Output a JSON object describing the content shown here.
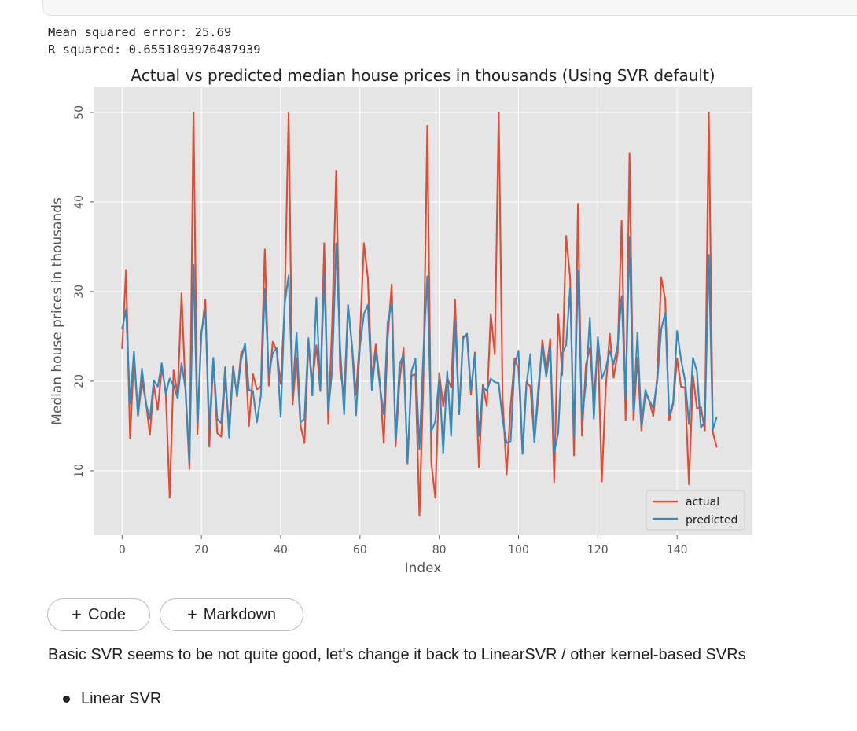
{
  "output": {
    "lines": [
      "Mean squared error: 25.69",
      "R squared: 0.6551893976487939"
    ]
  },
  "chart_data": {
    "type": "line",
    "title": "Actual vs predicted median house prices in thousands (Using SVR default)",
    "xlabel": "Index",
    "ylabel": "Median house prices in thousands",
    "xlim": [
      -7,
      159
    ],
    "ylim": [
      2.8,
      52.8
    ],
    "xticks": [
      0,
      20,
      40,
      60,
      80,
      100,
      120,
      140
    ],
    "yticks": [
      10,
      20,
      30,
      40,
      50
    ],
    "grid": true,
    "legend_position": "bottom-right",
    "series": [
      {
        "name": "actual",
        "color": "#E24A33",
        "values": [
          23.6,
          32.4,
          13.6,
          22.8,
          16.1,
          20.0,
          17.8,
          14.0,
          19.6,
          16.8,
          21.5,
          18.9,
          7.0,
          21.2,
          18.5,
          29.8,
          18.8,
          10.2,
          50.0,
          14.1,
          25.2,
          29.1,
          12.7,
          22.4,
          14.2,
          13.8,
          20.3,
          14.9,
          21.7,
          18.3,
          23.1,
          23.8,
          15.0,
          20.8,
          19.1,
          19.4,
          34.7,
          19.5,
          24.4,
          23.4,
          19.7,
          28.2,
          50.0,
          17.4,
          22.6,
          15.1,
          13.1,
          24.2,
          19.9,
          24.0,
          18.9,
          35.4,
          15.2,
          26.5,
          43.5,
          21.2,
          18.4,
          28.5,
          23.9,
          18.5,
          25.0,
          35.4,
          31.5,
          20.2,
          24.1,
          20.0,
          13.1,
          24.8,
          30.8,
          12.7,
          20.0,
          23.7,
          10.8,
          20.6,
          20.8,
          5.0,
          20.1,
          48.5,
          10.9,
          7.0,
          20.9,
          17.2,
          20.4,
          19.3,
          29.1,
          16.3,
          25.0,
          25.0,
          18.5,
          23.2,
          10.4,
          19.6,
          17.2,
          27.5,
          23.0,
          50.0,
          17.9,
          9.6,
          17.2,
          22.5,
          21.4,
          12.0,
          19.9,
          19.4,
          13.4,
          18.2,
          24.6,
          21.1,
          24.7,
          8.7,
          27.5,
          20.7,
          36.2,
          31.6,
          11.7,
          39.8,
          13.9,
          21.8,
          23.7,
          17.6,
          24.4,
          8.8,
          19.2,
          25.3,
          20.4,
          23.1,
          37.9,
          15.6,
          45.4,
          15.7,
          22.6,
          14.5,
          18.7,
          17.8,
          16.1,
          20.6,
          31.6,
          29.1,
          15.6,
          17.5,
          22.5,
          19.4,
          19.3,
          8.5,
          20.6,
          17.0,
          17.1,
          14.5,
          50.0,
          14.3,
          12.6
        ]
      },
      {
        "name": "predicted",
        "color": "#348ABD",
        "values": [
          25.8,
          28.0,
          17.5,
          23.3,
          16.2,
          21.4,
          17.6,
          15.8,
          20.1,
          19.4,
          22.0,
          18.6,
          20.3,
          19.5,
          18.1,
          22.0,
          19.1,
          11.1,
          33.0,
          15.2,
          25.5,
          27.9,
          14.7,
          22.6,
          15.8,
          15.3,
          21.6,
          13.7,
          21.5,
          18.4,
          22.3,
          24.2,
          19.0,
          18.9,
          15.4,
          18.4,
          30.3,
          20.7,
          23.1,
          23.7,
          16.0,
          28.6,
          31.8,
          18.7,
          25.4,
          15.4,
          15.8,
          24.8,
          18.4,
          29.3,
          19.0,
          31.9,
          16.6,
          21.3,
          35.4,
          23.8,
          16.3,
          28.4,
          24.0,
          16.2,
          23.9,
          27.5,
          28.5,
          19.0,
          23.3,
          19.6,
          16.3,
          26.6,
          28.6,
          13.4,
          21.9,
          22.9,
          10.9,
          21.1,
          22.5,
          12.4,
          23.1,
          31.7,
          14.4,
          15.5,
          20.5,
          12.0,
          21.1,
          13.9,
          26.8,
          16.3,
          24.7,
          25.3,
          19.0,
          23.0,
          13.9,
          19.4,
          18.9,
          20.3,
          19.9,
          19.8,
          15.6,
          13.1,
          13.3,
          21.8,
          23.4,
          11.9,
          19.6,
          23.0,
          13.2,
          19.4,
          23.9,
          20.5,
          23.7,
          12.0,
          14.2,
          23.1,
          24.0,
          30.4,
          13.8,
          32.3,
          15.8,
          19.8,
          27.1,
          15.8,
          24.9,
          20.3,
          21.4,
          23.4,
          21.9,
          24.0,
          29.5,
          18.0,
          36.1,
          16.6,
          25.4,
          15.0,
          19.0,
          17.8,
          17.0,
          20.0,
          25.8,
          27.6,
          16.3,
          17.6,
          25.6,
          22.4,
          20.1,
          15.2,
          22.6,
          21.1,
          14.8,
          15.5,
          34.1,
          14.6,
          16.0
        ]
      }
    ]
  },
  "toolbar": {
    "add_code_label": "Code",
    "add_markdown_label": "Markdown"
  },
  "markdown": {
    "paragraph": "Basic SVR seems to be not quite good, let's change it back to LinearSVR / other kernel-based SVRs",
    "list_items": [
      "Linear SVR"
    ]
  }
}
